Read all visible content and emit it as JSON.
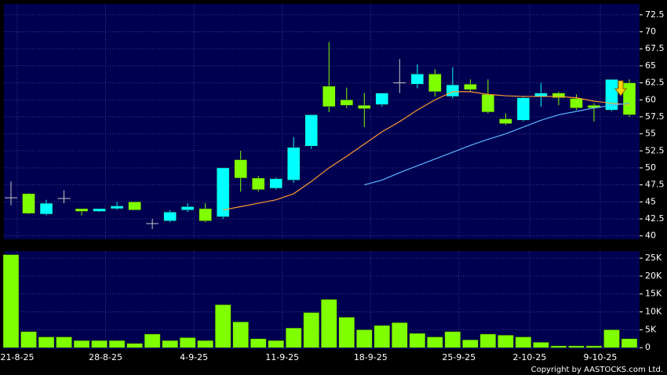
{
  "chart_data": [
    {
      "type": "candlestick",
      "open": [
        45.6,
        46.2,
        43.2,
        45.5,
        44,
        43.6,
        44,
        45,
        41.8,
        42.2,
        43.8,
        44,
        42.8,
        51.2,
        48.5,
        47,
        48.2,
        53.2,
        62,
        60,
        59.2,
        59.3,
        62.5,
        62.3,
        63.8,
        60.5,
        62.3,
        60.8,
        57.2,
        57,
        60.5,
        61,
        60.2,
        59.2,
        58.5,
        62.5
      ],
      "high": [
        48,
        46.3,
        45.3,
        46.7,
        44,
        44,
        45,
        45,
        42.5,
        43.8,
        44.8,
        44.8,
        50,
        52.5,
        48.8,
        48.6,
        54.5,
        57.8,
        68.5,
        61.8,
        61,
        61,
        66,
        65.2,
        64.5,
        64.8,
        63,
        63,
        58,
        60.5,
        62.5,
        61.2,
        60.8,
        59.5,
        63,
        63
      ],
      "low": [
        44.5,
        43.2,
        43,
        44.8,
        43,
        43.5,
        43.8,
        43.8,
        41,
        42,
        43.5,
        42,
        42.5,
        46.5,
        46.5,
        46.8,
        47.8,
        52.8,
        58.2,
        58.8,
        56,
        59,
        61,
        61.7,
        60.5,
        60.2,
        61.2,
        58,
        56.3,
        56.8,
        59,
        59.2,
        58.5,
        56.8,
        58.3,
        57.5
      ],
      "close": [
        45.6,
        43.3,
        44.8,
        45.5,
        43.6,
        44,
        44.4,
        43.8,
        41.8,
        43.5,
        44.3,
        42.2,
        50,
        48.5,
        46.8,
        48.4,
        53,
        57.8,
        59,
        59.2,
        58.7,
        61,
        62.5,
        63.8,
        61.2,
        62.2,
        61.5,
        58.2,
        56.5,
        60.3,
        61,
        60.3,
        58.8,
        58.8,
        63,
        57.8
      ],
      "up_color": "#00ffff",
      "down_color": "#80ff00",
      "flat_color": "#c8c8c8",
      "lines": [
        {
          "color": "#ff9a2e",
          "values": [
            null,
            null,
            null,
            null,
            null,
            null,
            null,
            null,
            null,
            null,
            null,
            null,
            43.8,
            44.3,
            44.8,
            45.3,
            46.2,
            48,
            50,
            51.7,
            53.5,
            55.3,
            56.8,
            58.5,
            60,
            61.2,
            61.2,
            60.8,
            60.6,
            60.5,
            60.5,
            60.5,
            60.3,
            59.8,
            59.5,
            59.3
          ]
        },
        {
          "color": "#5ab4ff",
          "values": [
            null,
            null,
            null,
            null,
            null,
            null,
            null,
            null,
            null,
            null,
            null,
            null,
            null,
            null,
            null,
            null,
            null,
            null,
            null,
            null,
            47.5,
            48.2,
            49.3,
            50.3,
            51.3,
            52.3,
            53.3,
            54.2,
            55,
            56,
            57,
            57.8,
            58.3,
            58.8,
            59.2,
            59.5
          ]
        }
      ],
      "ylim": [
        39.5,
        74.1
      ],
      "yticks": [
        40,
        42.5,
        45,
        47.5,
        50,
        52.5,
        55,
        57.5,
        60,
        62.5,
        65,
        67.5,
        70,
        72.5
      ],
      "grid": true
    },
    {
      "type": "bar",
      "categories": [
        "21-8-25",
        null,
        null,
        null,
        null,
        "28-8-25",
        null,
        null,
        null,
        null,
        "4-9-25",
        null,
        null,
        null,
        null,
        "11-9-25",
        null,
        null,
        null,
        null,
        "18-9-25",
        null,
        null,
        null,
        null,
        "25-9-25",
        null,
        null,
        null,
        "2-10-25",
        null,
        null,
        null,
        "9-10-25",
        null,
        null
      ],
      "values": [
        26000,
        4500,
        3000,
        3000,
        2000,
        2000,
        2000,
        1200,
        3800,
        2000,
        2800,
        2000,
        12000,
        7200,
        2500,
        2000,
        5500,
        9800,
        13500,
        8500,
        5000,
        6200,
        7000,
        4000,
        3000,
        4500,
        2200,
        3800,
        3500,
        3000,
        1500,
        500,
        500,
        500,
        5000,
        2500
      ],
      "color": "#80ff00",
      "ylim": [
        -400,
        27000
      ],
      "yticks": [
        0,
        {
          "value": 5000,
          "label": "5K"
        },
        {
          "value": 10000,
          "label": "10K"
        },
        {
          "value": 15000,
          "label": "15K"
        },
        {
          "value": 20000,
          "label": "20K"
        },
        {
          "value": 25000,
          "label": "25K"
        }
      ],
      "grid": true
    }
  ],
  "copyright": "Copyright by AASTOCKS.com Ltd."
}
